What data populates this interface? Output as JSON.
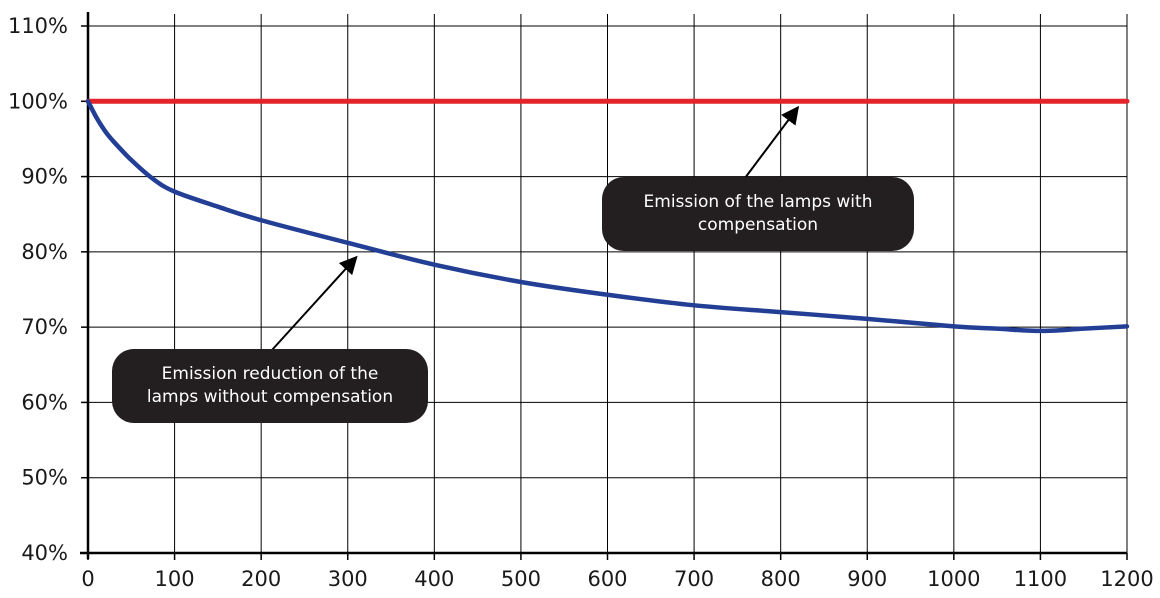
{
  "chart_data": {
    "type": "line",
    "title": "",
    "xlabel": "",
    "ylabel": "",
    "xlim": [
      0,
      1200
    ],
    "ylim": [
      40,
      110
    ],
    "x_ticks": [
      0,
      100,
      200,
      300,
      400,
      500,
      600,
      700,
      800,
      900,
      1000,
      1100,
      1200
    ],
    "x_tick_labels": [
      "0",
      "100",
      "200",
      "300",
      "400",
      "500",
      "600",
      "700",
      "800",
      "900",
      "1000",
      "1100",
      "1200"
    ],
    "y_ticks": [
      40,
      50,
      60,
      70,
      80,
      90,
      100,
      110
    ],
    "y_tick_labels": [
      "40%",
      "50%",
      "60%",
      "70%",
      "80%",
      "90%",
      "100%",
      "110%"
    ],
    "grid": true,
    "series": [
      {
        "color": "#e3242b",
        "x": [
          0,
          1200
        ],
        "y": [
          100,
          100
        ]
      },
      {
        "color": "#233f95",
        "x": [
          0,
          10,
          20,
          30,
          50,
          75,
          100,
          150,
          200,
          300,
          400,
          500,
          600,
          700,
          800,
          900,
          1000,
          1050,
          1100,
          1150,
          1200
        ],
        "y": [
          100,
          97.8,
          96.0,
          94.6,
          92.2,
          89.7,
          88.0,
          86.0,
          84.2,
          81.2,
          78.3,
          76.0,
          74.3,
          72.9,
          72.0,
          71.1,
          70.1,
          69.8,
          69.5,
          69.8,
          70.1
        ]
      }
    ],
    "annotations": [
      {
        "id": "with",
        "lines": [
          "Emission of the lamps with",
          "compensation"
        ],
        "arrow_to": {
          "x": 820,
          "y": 100
        }
      },
      {
        "id": "without",
        "lines": [
          "Emission reduction of the",
          "lamps without compensation"
        ],
        "arrow_to": {
          "x": 310,
          "y": 80.1
        }
      }
    ]
  }
}
